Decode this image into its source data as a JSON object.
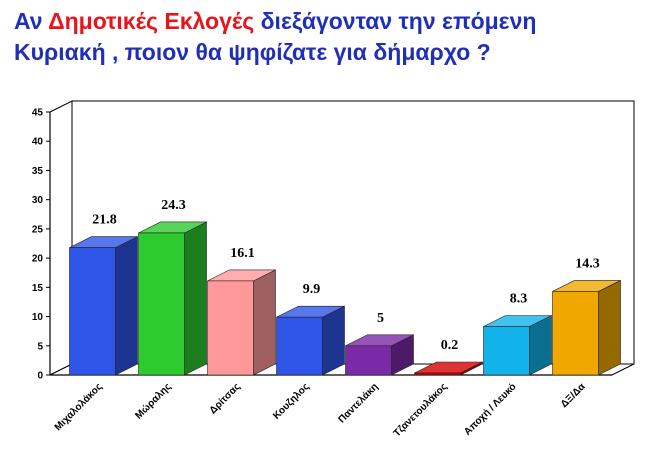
{
  "title": {
    "part1": "Αν ",
    "highlight": "Δημοτικές Εκλογές",
    "part2": " διεξάγονταν την επόμενη",
    "line2": "Κυριακή , ποιον θα ψηφίζατε για δήμαρχο ?",
    "color": "#1f2fb8",
    "highlight_color": "#e8141b"
  },
  "chart_data": {
    "type": "bar",
    "categories": [
      "Μιχαλολάκος",
      "Μώραλης",
      "Δρίτσας",
      "Κουζηλος",
      "Παντελάκη",
      "Τζανετουλάκος",
      "Αποχή / Λευκό",
      "ΔΞ/Δα"
    ],
    "values": [
      21.8,
      24.3,
      16.1,
      9.9,
      5,
      0.2,
      8.3,
      14.3
    ],
    "data_labels": [
      "21.8",
      "24.3",
      "16.1",
      "9.9",
      "5",
      "0.2",
      "8.3",
      "14.3"
    ],
    "colors": [
      "#2f55e8",
      "#2ecb2e",
      "#ff9999",
      "#2f55e8",
      "#7a2aa6",
      "#d40000",
      "#11b3ea",
      "#f0a800"
    ],
    "yticks": [
      "0",
      "5",
      "10",
      "15",
      "20",
      "25",
      "30",
      "35",
      "40",
      "45"
    ],
    "ylim": [
      0,
      45
    ],
    "style": "3d-bar",
    "grid": false,
    "legend": "none"
  }
}
